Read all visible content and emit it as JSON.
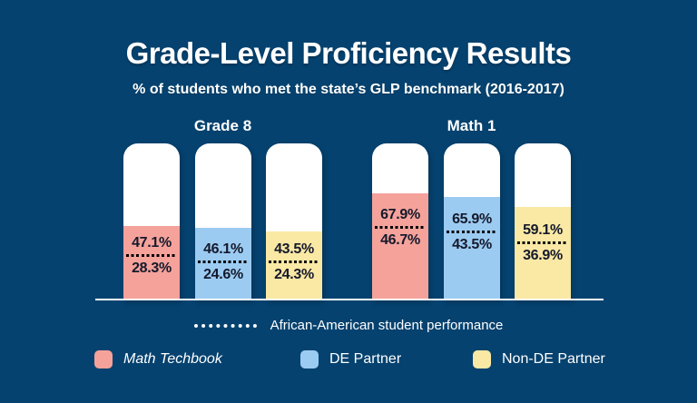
{
  "title": "Grade-Level Proficiency Results",
  "subtitle": "% of students who met the state’s GLP benchmark (2016-2017)",
  "colors": {
    "background": "#05426F",
    "bar_track": "#FFFFFF",
    "math_techbook": "#F5A29B",
    "de_partner": "#9CCBF2",
    "non_de_partner": "#FAE8A5",
    "value_text": "#14192B",
    "dotted_line": "#000000",
    "baseline": "#FFFFFF"
  },
  "chart_data": {
    "type": "bar",
    "unit": "%",
    "ylim": [
      0,
      100
    ],
    "dotted_line_meaning": "African-American student performance",
    "series_names": [
      "Math Techbook",
      "DE Partner",
      "Non-DE Partner"
    ],
    "groups": [
      {
        "label": "Grade 8",
        "bars": [
          {
            "series": "Math Techbook",
            "value": 47.1,
            "value_label": "47.1%",
            "aa_value": 28.3,
            "aa_label": "28.3%"
          },
          {
            "series": "DE Partner",
            "value": 46.1,
            "value_label": "46.1%",
            "aa_value": 24.6,
            "aa_label": "24.6%"
          },
          {
            "series": "Non-DE Partner",
            "value": 43.5,
            "value_label": "43.5%",
            "aa_value": 24.3,
            "aa_label": "24.3%"
          }
        ]
      },
      {
        "label": "Math 1",
        "bars": [
          {
            "series": "Math Techbook",
            "value": 67.9,
            "value_label": "67.9%",
            "aa_value": 46.7,
            "aa_label": "46.7%"
          },
          {
            "series": "DE Partner",
            "value": 65.9,
            "value_label": "65.9%",
            "aa_value": 43.5,
            "aa_label": "43.5%"
          },
          {
            "series": "Non-DE Partner",
            "value": 59.1,
            "value_label": "59.1%",
            "aa_value": 36.9,
            "aa_label": "36.9%"
          }
        ]
      }
    ]
  },
  "legend": {
    "dotted_label": "African-American student performance",
    "items": [
      {
        "label": "Math Techbook",
        "color": "#F5A29B"
      },
      {
        "label": "DE Partner",
        "color": "#9CCBF2"
      },
      {
        "label": "Non-DE Partner",
        "color": "#FAE8A5"
      }
    ]
  }
}
